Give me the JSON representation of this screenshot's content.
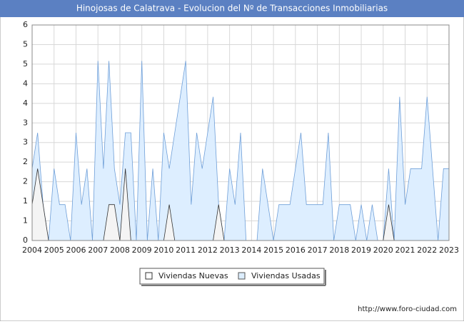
{
  "chart_data": {
    "type": "area",
    "title": "Hinojosas de Calatrava - Evolucion del Nº de Transacciones Inmobiliarias",
    "footer": "http://www.foro-ciudad.com",
    "x": [
      2004,
      2004.25,
      2004.5,
      2004.75,
      2005,
      2005.25,
      2005.5,
      2005.75,
      2006,
      2006.25,
      2006.5,
      2006.75,
      2007,
      2007.25,
      2007.5,
      2007.75,
      2008,
      2008.25,
      2008.5,
      2008.75,
      2009,
      2009.25,
      2009.5,
      2009.75,
      2010,
      2010.25,
      2010.5,
      2010.75,
      2011,
      2011.25,
      2011.5,
      2011.75,
      2012,
      2012.25,
      2012.5,
      2012.75,
      2013,
      2013.25,
      2013.5,
      2013.75,
      2014,
      2014.25,
      2014.5,
      2014.75,
      2015,
      2015.25,
      2015.5,
      2015.75,
      2016,
      2016.25,
      2016.5,
      2016.75,
      2017,
      2017.25,
      2017.5,
      2017.75,
      2018,
      2018.25,
      2018.5,
      2018.75,
      2019,
      2019.25,
      2019.5,
      2019.75,
      2020,
      2020.25,
      2020.5,
      2020.75,
      2021,
      2021.25,
      2021.5,
      2021.75,
      2022,
      2022.25,
      2022.5,
      2022.75,
      2023
    ],
    "series": [
      {
        "name": "Viviendas Usadas",
        "color": "#6f9fd8",
        "fill": "#ddeeff",
        "values": [
          2,
          3,
          1,
          0,
          2,
          1,
          1,
          0,
          3,
          1,
          2,
          0,
          5,
          2,
          5,
          2,
          1,
          3,
          3,
          0,
          5,
          0,
          2,
          0,
          3,
          2,
          3,
          4,
          5,
          1,
          3,
          2,
          3,
          4,
          1,
          0,
          2,
          1,
          3,
          0,
          0,
          0,
          2,
          1,
          0,
          1,
          1,
          1,
          2,
          3,
          1,
          1,
          1,
          1,
          3,
          0,
          1,
          1,
          1,
          0,
          1,
          0,
          1,
          0,
          0,
          2,
          0,
          4,
          1,
          2,
          2,
          2,
          4,
          2,
          0,
          2,
          2
        ]
      },
      {
        "name": "Viviendas Nuevas",
        "color": "#333333",
        "fill": "#f4f4f4",
        "values": [
          1,
          2,
          1,
          0,
          0,
          0,
          0,
          0,
          0,
          0,
          0,
          0,
          0,
          0,
          1,
          1,
          0,
          2,
          0,
          0,
          0,
          0,
          0,
          0,
          0,
          1,
          0,
          0,
          0,
          0,
          0,
          0,
          0,
          0,
          1,
          0,
          0,
          0,
          0,
          0,
          0,
          0,
          0,
          0,
          0,
          0,
          0,
          0,
          0,
          0,
          0,
          0,
          0,
          0,
          0,
          0,
          0,
          0,
          0,
          0,
          0,
          0,
          0,
          0,
          0,
          1,
          0,
          0,
          0,
          0,
          0,
          0,
          0,
          0,
          0,
          0,
          0
        ]
      }
    ],
    "xlim": [
      2004,
      2023
    ],
    "xticks": [
      2004,
      2005,
      2006,
      2007,
      2008,
      2009,
      2010,
      2011,
      2012,
      2013,
      2014,
      2015,
      2016,
      2017,
      2018,
      2019,
      2020,
      2021,
      2022,
      2023
    ],
    "ylim": [
      0,
      6
    ],
    "yticks": [
      0,
      {
        "value": 0.5455,
        "label": "1"
      },
      {
        "value": 1.0909,
        "label": "1"
      },
      {
        "value": 1.6364,
        "label": "2"
      },
      {
        "value": 2.1818,
        "label": "2"
      },
      {
        "value": 2.7273,
        "label": "3"
      },
      {
        "value": 3.2727,
        "label": "3"
      },
      {
        "value": 3.8182,
        "label": "4"
      },
      {
        "value": 4.3636,
        "label": "4"
      },
      {
        "value": 4.9091,
        "label": "5"
      },
      {
        "value": 5.4545,
        "label": "5"
      },
      6
    ],
    "grid": true
  }
}
